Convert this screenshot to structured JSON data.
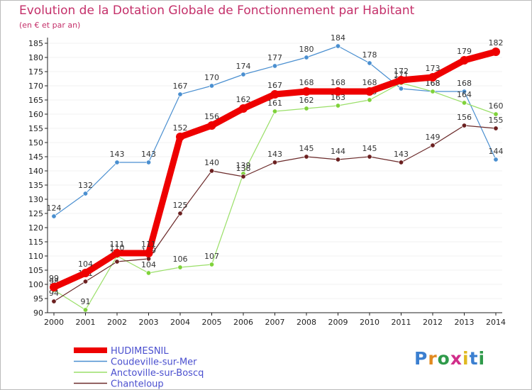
{
  "header": {
    "title": "Evolution de la Dotation Globale de Fonctionnement par Habitant",
    "subtitle": "(en € et par an)"
  },
  "logo": {
    "text": "Proxiti",
    "letters": [
      {
        "ch": "P",
        "color": "#3b7fd0"
      },
      {
        "ch": "r",
        "color": "#e28a20"
      },
      {
        "ch": "o",
        "color": "#2f9a4a"
      },
      {
        "ch": "x",
        "color": "#d12e8a"
      },
      {
        "ch": "i",
        "color": "#e0b820"
      },
      {
        "ch": "t",
        "color": "#3b7fd0"
      },
      {
        "ch": "i",
        "color": "#2f9a4a"
      }
    ]
  },
  "colors": {
    "grid": "#ffffff",
    "axis": "#222222",
    "background": "#ffffff"
  },
  "chart_data": {
    "type": "line",
    "title": "Evolution de la Dotation Globale de Fonctionnement par Habitant",
    "subtitle": "(en € et par an)",
    "xlabel": "",
    "ylabel": "",
    "categories": [
      "2000",
      "2001",
      "2002",
      "2003",
      "2004",
      "2005",
      "2006",
      "2007",
      "2008",
      "2009",
      "2010",
      "2011",
      "2012",
      "2013",
      "2014"
    ],
    "ylim": [
      90,
      185
    ],
    "yticks": [
      90,
      95,
      100,
      105,
      110,
      115,
      120,
      125,
      130,
      135,
      140,
      145,
      150,
      155,
      160,
      165,
      170,
      175,
      180,
      185
    ],
    "series": [
      {
        "name": "Coudeville-sur-Mer",
        "color": "#4a8fd0",
        "marker": "#4a8fd0",
        "width": 1.2,
        "labelColor": "#333333",
        "values": [
          124,
          132,
          143,
          143,
          167,
          170,
          174,
          177,
          180,
          184,
          178,
          169,
          168,
          168,
          144
        ]
      },
      {
        "name": "Anctoville-sur-Boscq",
        "color": "#9adf68",
        "marker": "#7fd23a",
        "width": 1.2,
        "labelColor": "#333333",
        "values": [
          98,
          91,
          110,
          104,
          106,
          107,
          139,
          161,
          162,
          163,
          165,
          171,
          168,
          164,
          160
        ]
      },
      {
        "name": "Chanteloup",
        "color": "#6b2a2a",
        "marker": "#6b2020",
        "width": 1.2,
        "labelColor": "#333333",
        "values": [
          94,
          101,
          108,
          109,
          125,
          140,
          138,
          143,
          145,
          144,
          145,
          143,
          149,
          156,
          155
        ]
      },
      {
        "name": "HUDIMESNIL",
        "color": "#ee0000",
        "marker": "#ee0000",
        "width": 9,
        "labelColor": "#333333",
        "values": [
          99,
          104,
          111,
          111,
          152,
          156,
          162,
          167,
          168,
          168,
          168,
          172,
          173,
          179,
          182
        ]
      }
    ],
    "legend": {
      "position": "bottom-left",
      "entries": [
        "HUDIMESNIL",
        "Coudeville-sur-Mer",
        "Anctoville-sur-Boscq",
        "Chanteloup"
      ]
    }
  }
}
